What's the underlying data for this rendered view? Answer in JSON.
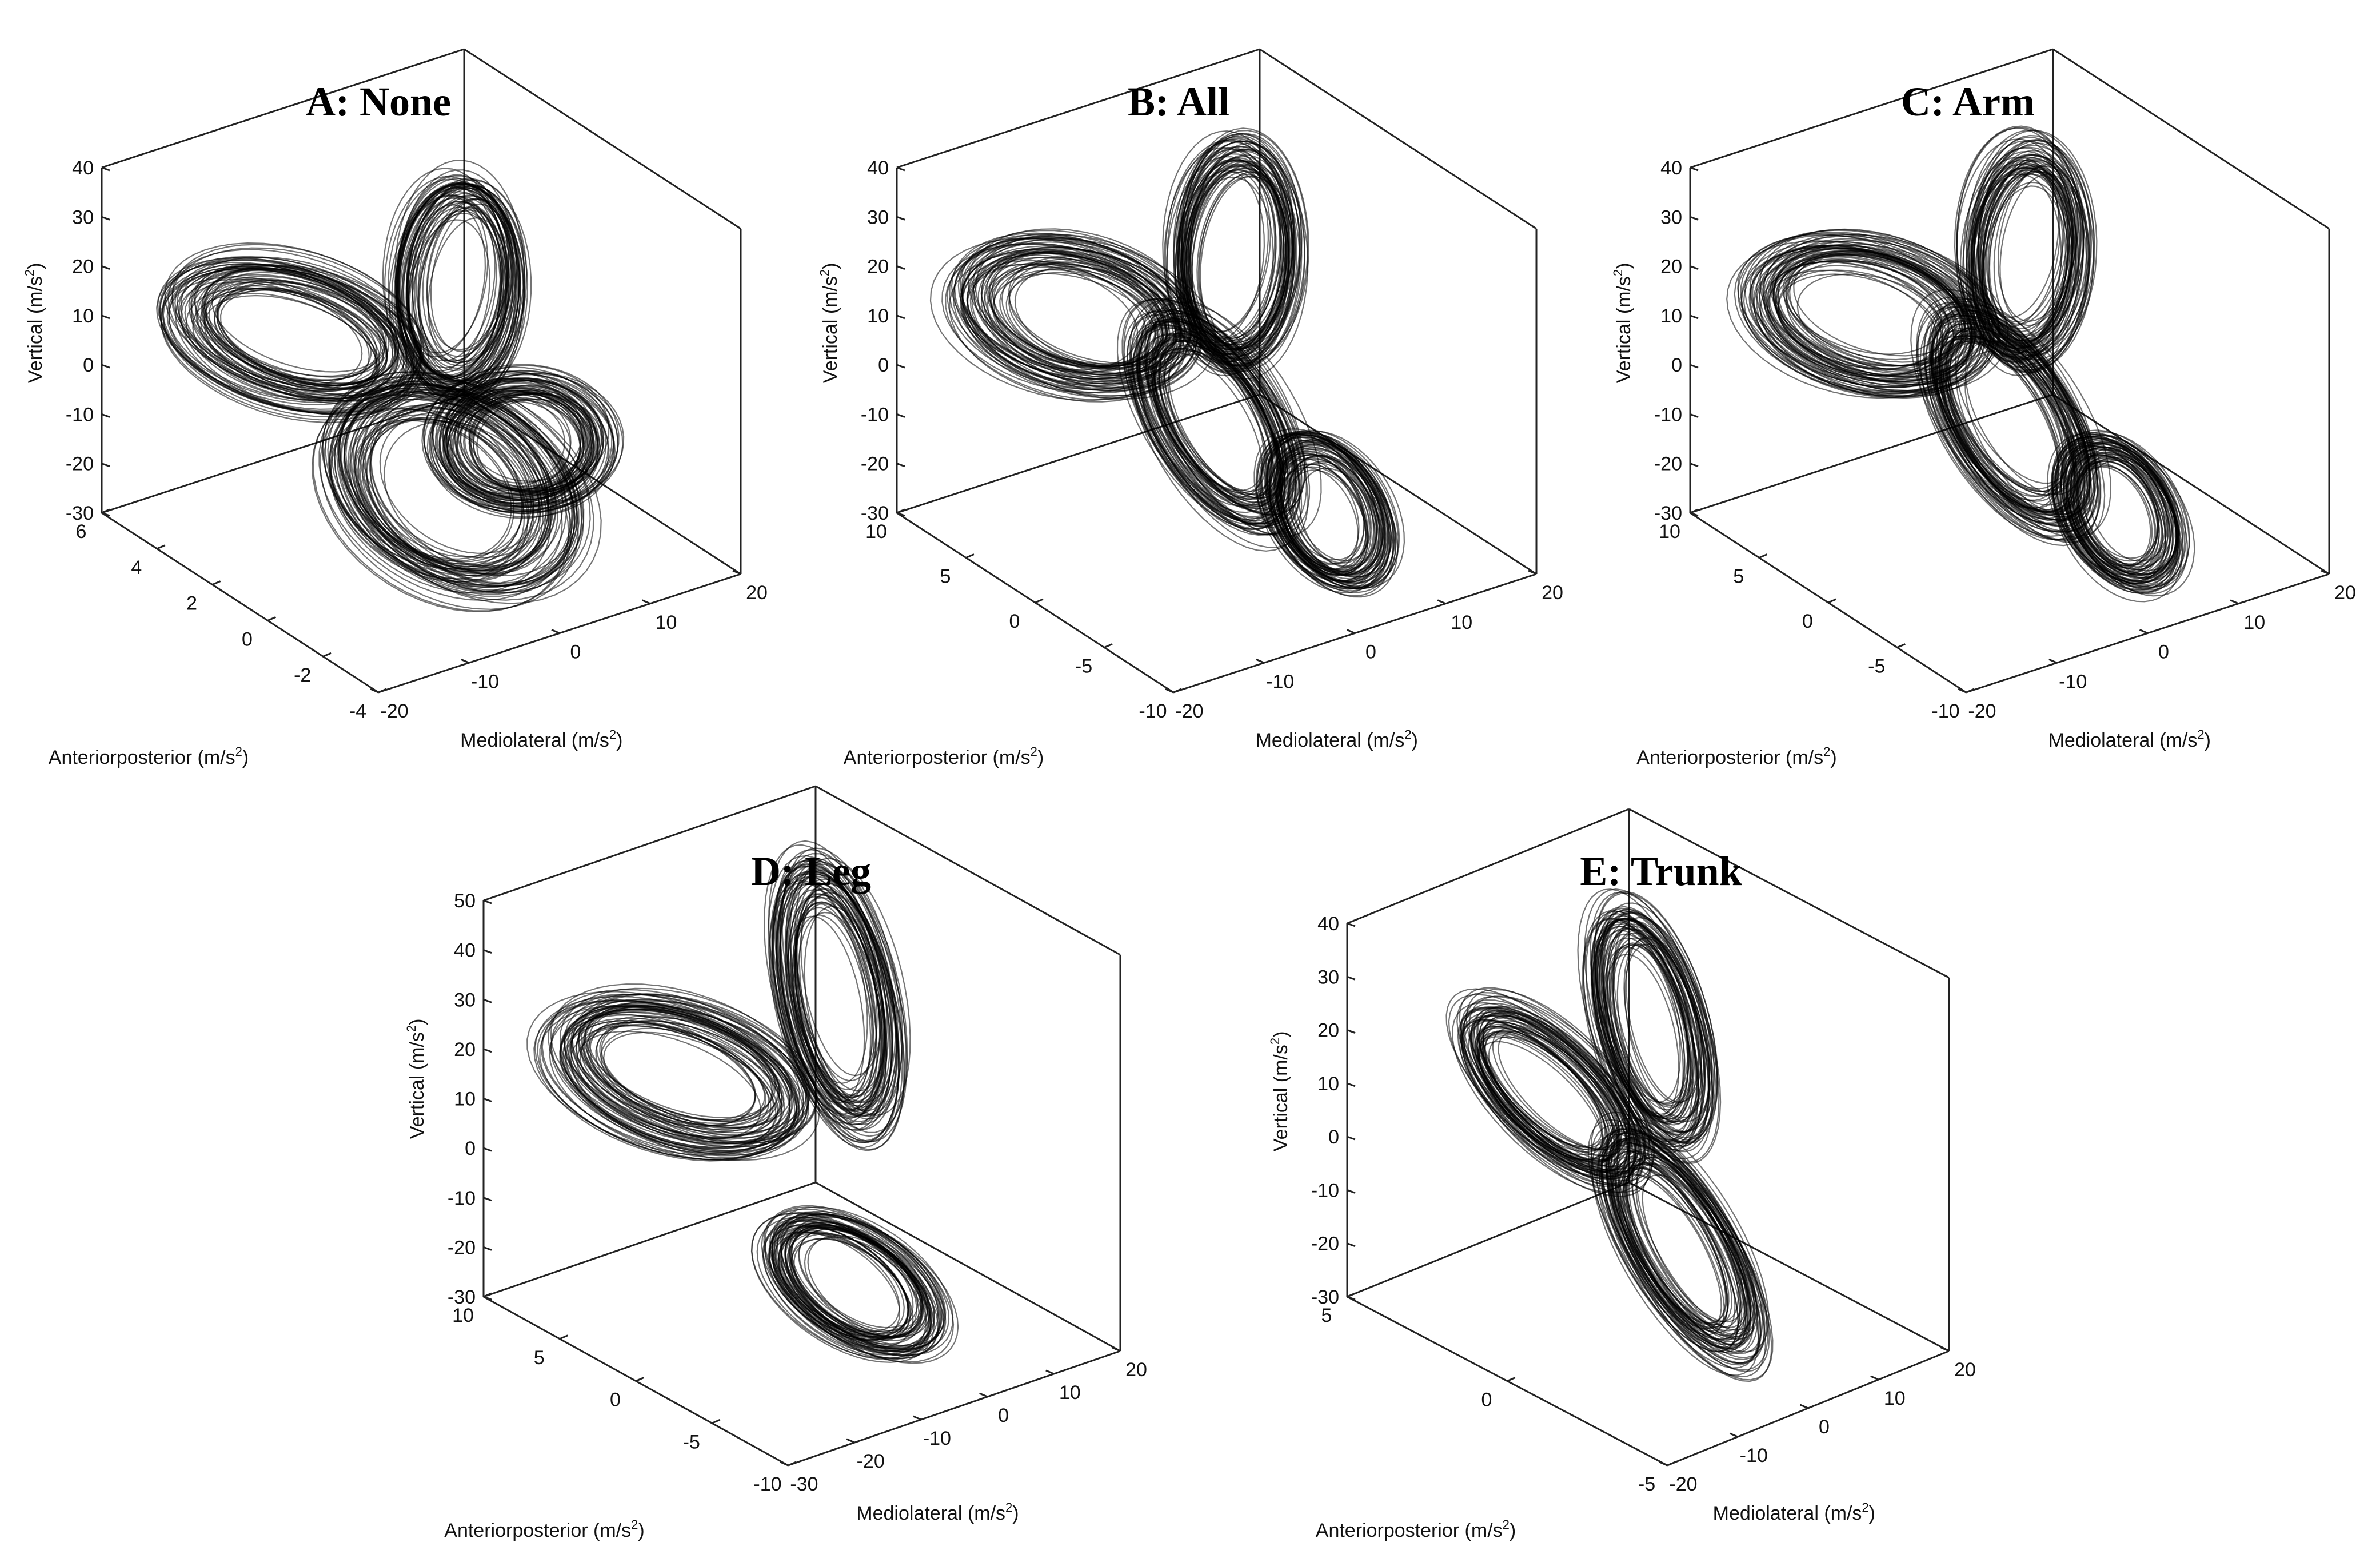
{
  "chart_data": [
    {
      "type": "line",
      "title": "A: None",
      "xlabel": "Mediolateral (m/s^2)",
      "ylabel": "Anteriorposterior (m/s^2)",
      "zlabel": "Vertical (m/s^2)",
      "xlim": [
        -20,
        20
      ],
      "xticks": [
        -20,
        -10,
        0,
        10,
        20
      ],
      "ylim": [
        -4,
        6
      ],
      "yticks": [
        -4,
        -2,
        0,
        2,
        4,
        6
      ],
      "zlim": [
        -30,
        40
      ],
      "zticks": [
        -30,
        -20,
        -10,
        0,
        10,
        20,
        30,
        40
      ],
      "lobes": [
        {
          "center": [
            4,
            1,
            20
          ],
          "radius": [
            6,
            1.2,
            14
          ],
          "tilt": 0.5
        },
        {
          "center": [
            -8,
            3,
            10
          ],
          "radius": [
            10,
            2.2,
            6
          ],
          "tilt": -0.4
        },
        {
          "center": [
            0,
            0,
            -15
          ],
          "radius": [
            10,
            2.5,
            10
          ],
          "tilt": 0.1
        },
        {
          "center": [
            5,
            -1,
            -5
          ],
          "radius": [
            8,
            1.5,
            6
          ],
          "tilt": 0.2
        }
      ]
    },
    {
      "type": "line",
      "title": "B: All",
      "xlabel": "Mediolateral (m/s^2)",
      "ylabel": "Anteriorposterior (m/s^2)",
      "zlabel": "Vertical (m/s^2)",
      "xlim": [
        -20,
        20
      ],
      "xticks": [
        -20,
        -10,
        0,
        10,
        20
      ],
      "ylim": [
        -10,
        10
      ],
      "yticks": [
        -10,
        -5,
        0,
        5,
        10
      ],
      "zlim": [
        -30,
        40
      ],
      "zticks": [
        -30,
        -20,
        -10,
        0,
        10,
        20,
        30,
        40
      ],
      "lobes": [
        {
          "center": [
            5,
            2,
            22
          ],
          "radius": [
            6,
            2.5,
            15
          ],
          "tilt": 0.5
        },
        {
          "center": [
            -8,
            5,
            12
          ],
          "radius": [
            10,
            4,
            7
          ],
          "tilt": -0.3
        },
        {
          "center": [
            0,
            0,
            -5
          ],
          "radius": [
            6,
            4,
            14
          ],
          "tilt": 0.0
        },
        {
          "center": [
            6,
            -4,
            -20
          ],
          "radius": [
            5,
            3,
            8
          ],
          "tilt": 0.3
        }
      ]
    },
    {
      "type": "line",
      "title": "C: Arm",
      "xlabel": "Mediolateral (m/s^2)",
      "ylabel": "Anteriorposterior (m/s^2)",
      "zlabel": "Vertical (m/s^2)",
      "xlim": [
        -20,
        20
      ],
      "xticks": [
        -20,
        -10,
        0,
        10,
        20
      ],
      "ylim": [
        -10,
        10
      ],
      "yticks": [
        -10,
        -5,
        0,
        5,
        10
      ],
      "zlim": [
        -30,
        40
      ],
      "zticks": [
        -30,
        -20,
        -10,
        0,
        10,
        20,
        30,
        40
      ],
      "lobes": [
        {
          "center": [
            5,
            2,
            22
          ],
          "radius": [
            6,
            2.5,
            15
          ],
          "tilt": 0.5
        },
        {
          "center": [
            -8,
            5,
            12
          ],
          "radius": [
            10,
            4,
            7
          ],
          "tilt": -0.3
        },
        {
          "center": [
            0,
            0,
            -5
          ],
          "radius": [
            6,
            4,
            14
          ],
          "tilt": 0.0
        },
        {
          "center": [
            6,
            -4,
            -20
          ],
          "radius": [
            5,
            3,
            8
          ],
          "tilt": 0.3
        }
      ]
    },
    {
      "type": "line",
      "title": "D: Leg",
      "xlabel": "Mediolateral (m/s^2)",
      "ylabel": "Anteriorposterior (m/s^2)",
      "zlabel": "Vertical (m/s^2)",
      "xlim": [
        -30,
        20
      ],
      "xticks": [
        -30,
        -20,
        -10,
        0,
        10,
        20
      ],
      "ylim": [
        -10,
        10
      ],
      "yticks": [
        -10,
        -5,
        0,
        5,
        10
      ],
      "zlim": [
        -30,
        50
      ],
      "zticks": [
        -30,
        -20,
        -10,
        0,
        10,
        20,
        30,
        40,
        50
      ],
      "lobes": [
        {
          "center": [
            5,
            2,
            28
          ],
          "radius": [
            7,
            3,
            20
          ],
          "tilt": 0.3
        },
        {
          "center": [
            -12,
            5,
            15
          ],
          "radius": [
            14,
            4,
            8
          ],
          "tilt": -0.45
        },
        {
          "center": [
            -2,
            -2,
            -20
          ],
          "radius": [
            8,
            4,
            6
          ],
          "tilt": 0.1
        }
      ]
    },
    {
      "type": "line",
      "title": "E: Trunk",
      "xlabel": "Mediolateral (m/s^2)",
      "ylabel": "Anteriorposterior (m/s^2)",
      "zlabel": "Vertical (m/s^2)",
      "xlim": [
        -20,
        20
      ],
      "xticks": [
        -20,
        -10,
        0,
        10,
        20
      ],
      "ylim": [
        -5,
        5
      ],
      "yticks": [
        -5,
        0,
        5
      ],
      "zlim": [
        -30,
        40
      ],
      "zticks": [
        -30,
        -20,
        -10,
        0,
        10,
        20,
        30,
        40
      ],
      "lobes": [
        {
          "center": [
            5,
            1,
            20
          ],
          "radius": [
            6,
            1.5,
            16
          ],
          "tilt": 0.3
        },
        {
          "center": [
            -5,
            2,
            10
          ],
          "radius": [
            7,
            2,
            10
          ],
          "tilt": -0.2
        },
        {
          "center": [
            0,
            -1,
            -12
          ],
          "radius": [
            6,
            2,
            14
          ],
          "tilt": 0.1
        }
      ]
    }
  ]
}
